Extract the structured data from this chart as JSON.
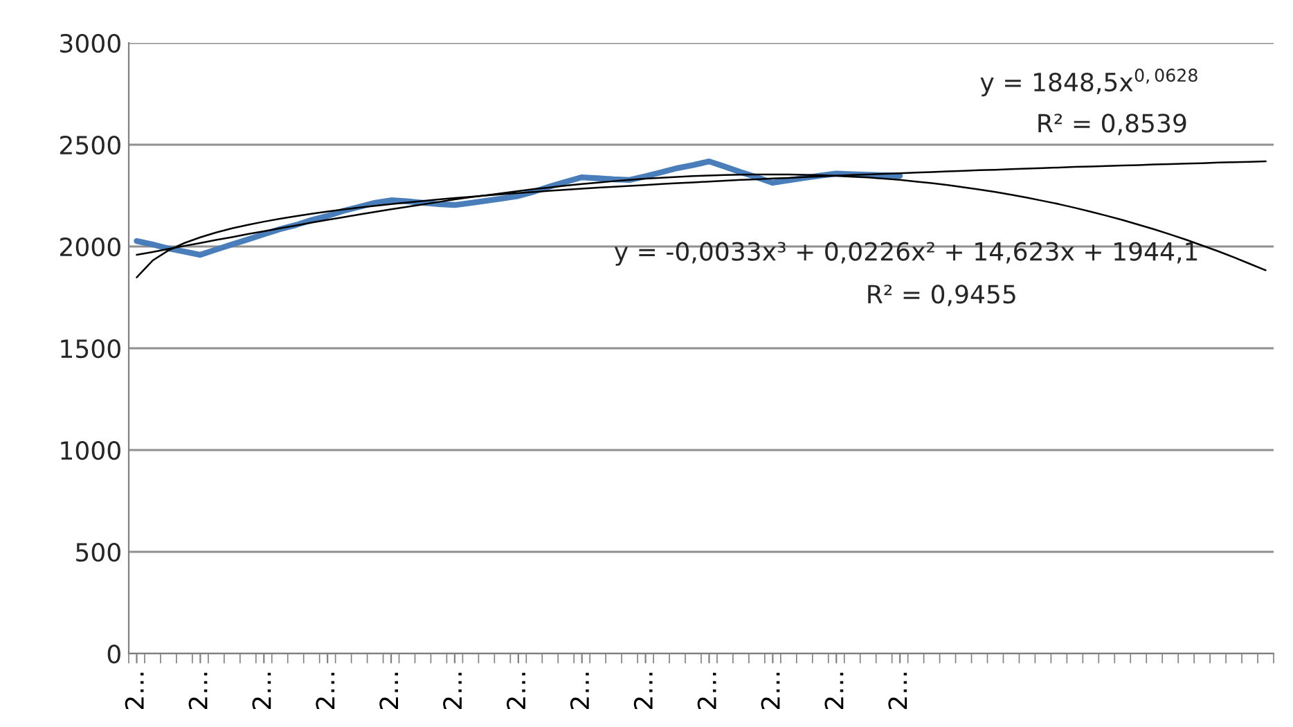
{
  "chart_data": {
    "type": "line",
    "categories": [
      "2…",
      null,
      null,
      null,
      "2…",
      null,
      null,
      null,
      "2…",
      null,
      null,
      null,
      "2…",
      null,
      null,
      null,
      "2…",
      null,
      null,
      null,
      "2…",
      null,
      null,
      null,
      "2…",
      null,
      null,
      null,
      "2…",
      null,
      null,
      null,
      "2…",
      null,
      null,
      null,
      "2…",
      null,
      null,
      null,
      "2…",
      null,
      null,
      null,
      "2…",
      null,
      null,
      null,
      "2…",
      null,
      null,
      null,
      null,
      null,
      null,
      null,
      null,
      null,
      null,
      null,
      null,
      null,
      null,
      null,
      null,
      null,
      null,
      null,
      null,
      null,
      null,
      null
    ],
    "series": [
      {
        "color": "#4a7ebb",
        "values": [
          2027,
          2010,
          1990,
          1975,
          1959,
          1985,
          2010,
          2035,
          2060,
          2085,
          2105,
          2130,
          2150,
          2175,
          2195,
          2215,
          2227,
          2222,
          2215,
          2208,
          2204,
          2214,
          2225,
          2236,
          2248,
          2270,
          2295,
          2318,
          2340,
          2335,
          2330,
          2327,
          2345,
          2365,
          2385,
          2400,
          2418,
          2392,
          2365,
          2340,
          2313,
          2325,
          2337,
          2348,
          2358,
          2355,
          2352,
          2350,
          2347,
          null,
          null,
          null,
          null,
          null,
          null,
          null,
          null,
          null,
          null,
          null,
          null,
          null,
          null,
          null,
          null,
          null,
          null,
          null,
          null,
          null,
          null,
          null
        ]
      },
      {
        "type": "line",
        "color": "#000000",
        "values": [
          1848,
          1931,
          1981,
          2017,
          2045,
          2069,
          2089,
          2106,
          2122,
          2136,
          2149,
          2161,
          2172,
          2182,
          2191,
          2200,
          2208,
          2216,
          2224,
          2231,
          2238,
          2244,
          2251,
          2257,
          2263,
          2268,
          2274,
          2279,
          2284,
          2289,
          2293,
          2298,
          2302,
          2307,
          2311,
          2315,
          2319,
          2323,
          2327,
          2330,
          2334,
          2337,
          2341,
          2344,
          2348,
          2351,
          2354,
          2357,
          2360,
          2363,
          2366,
          2369,
          2372,
          2375,
          2377,
          2380,
          2383,
          2385,
          2388,
          2391,
          2393,
          2395,
          2398,
          2400,
          2403,
          2405,
          2407,
          2409,
          2412,
          2414,
          2416,
          2418
        ]
      },
      {
        "type": "line",
        "color": "#000000",
        "values": [
          1959,
          1973,
          1988,
          2003,
          2017,
          2032,
          2046,
          2061,
          2075,
          2089,
          2103,
          2117,
          2131,
          2144,
          2157,
          2170,
          2183,
          2195,
          2207,
          2219,
          2231,
          2242,
          2252,
          2262,
          2272,
          2282,
          2290,
          2299,
          2307,
          2314,
          2321,
          2327,
          2333,
          2338,
          2342,
          2346,
          2349,
          2351,
          2353,
          2354,
          2354,
          2354,
          2352,
          2350,
          2347,
          2343,
          2339,
          2333,
          2327,
          2319,
          2311,
          2302,
          2291,
          2280,
          2268,
          2254,
          2240,
          2224,
          2208,
          2190,
          2171,
          2151,
          2130,
          2107,
          2084,
          2059,
          2033,
          2005,
          1977,
          1947,
          1915,
          1883
        ]
      }
    ],
    "ylim": [
      0,
      3000
    ],
    "yticks": [
      0,
      500,
      1000,
      1500,
      2000,
      2500,
      3000
    ],
    "grid": "y",
    "annotations": [
      "y = 1848,5x$^{0,0628}$",
      "R² = 0,8539",
      "y = -0,0033x³ + 0,0226x² + 14,623x + 1944,1",
      "R² = 0,9455"
    ]
  }
}
